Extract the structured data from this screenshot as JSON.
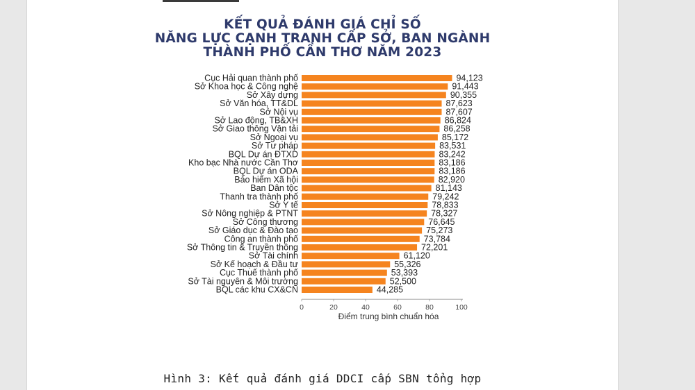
{
  "title_lines": [
    "KẾT QUẢ ĐÁNH GIÁ CHỈ SỐ",
    "NĂNG LỰC CẠNH TRANH CẤP SỞ, BAN NGÀNH",
    "THÀNH PHỐ CẦN THƠ NĂM 2023"
  ],
  "caption": "Hình 3: Kết quả đánh giá DDCI cấp SBN tổng hợp",
  "colors": {
    "bar": "#f5841f",
    "title": "#2e3a6b"
  },
  "chart_data": {
    "type": "bar",
    "orientation": "horizontal",
    "title": "KẾT QUẢ ĐÁNH GIÁ CHỈ SỐ NĂNG LỰC CẠNH TRANH CẤP SỞ, BAN NGÀNH THÀNH PHỐ CẦN THƠ NĂM 2023",
    "xlabel": "Điểm trung bình chuẩn hóa",
    "ylabel": "",
    "xlim": [
      0,
      100
    ],
    "xticks": [
      0,
      20,
      40,
      60,
      80,
      100
    ],
    "grid": false,
    "categories": [
      "Cục Hải quan thành phố",
      "Sở Khoa học & Công nghệ",
      "Sở Xây dựng",
      "Sở Văn hóa, TT&DL",
      "Sở Nội vụ",
      "Sở Lao động, TB&XH",
      "Sở Giao thông Vận tải",
      "Sở Ngoại vụ",
      "Sở Tư pháp",
      "BQL Dự án ĐTXD",
      "Kho bạc Nhà nước Cần Thơ",
      "BQL Dự án ODA",
      "Bảo hiểm Xã hội",
      "Ban Dân tộc",
      "Thanh tra thành phố",
      "Sở Y tế",
      "Sở Nông nghiệp & PTNT",
      "Sở Công thương",
      "Sở Giáo dục & Đào tạo",
      "Công an thành phố",
      "Sở Thông tin & Truyền thông",
      "Sở Tài chính",
      "Sở Kế hoạch & Đầu tư",
      "Cục Thuế thành phố",
      "Sở Tài nguyên & Môi trường",
      "BQL các khu CX&CN"
    ],
    "values": [
      94.123,
      91.443,
      90.355,
      87.623,
      87.607,
      86.824,
      86.258,
      85.172,
      83.531,
      83.242,
      83.186,
      83.186,
      82.92,
      81.143,
      79.242,
      78.833,
      78.327,
      76.645,
      75.273,
      73.784,
      72.201,
      61.12,
      55.326,
      53.393,
      52.5,
      44.285
    ],
    "value_labels": [
      "94,123",
      "91,443",
      "90,355",
      "87,623",
      "87,607",
      "86,824",
      "86,258",
      "85,172",
      "83,531",
      "83,242",
      "83,186",
      "83,186",
      "82,920",
      "81,143",
      "79,242",
      "78,833",
      "78,327",
      "76,645",
      "75,273",
      "73,784",
      "72,201",
      "61,120",
      "55,326",
      "53,393",
      "52,500",
      "44,285"
    ]
  }
}
